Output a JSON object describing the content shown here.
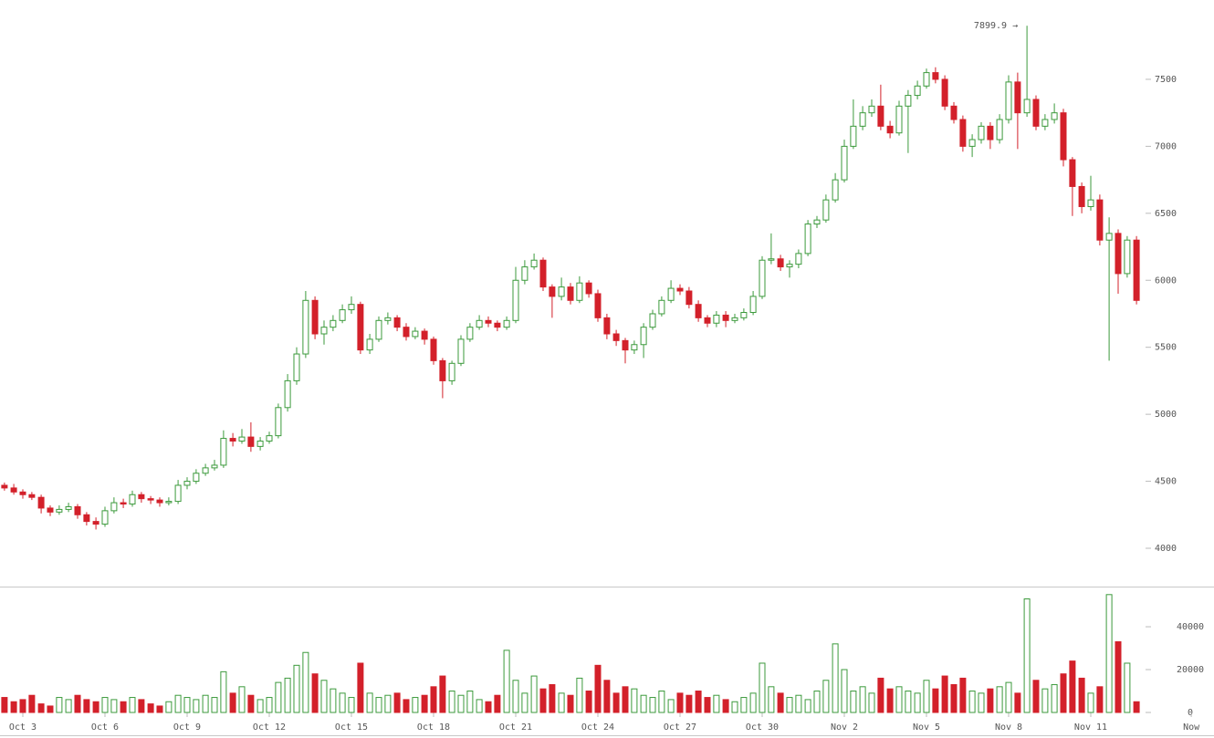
{
  "chart_data": {
    "type": "candlestick",
    "x": [
      -0.67,
      -0.33,
      0,
      0.33,
      0.67,
      1,
      1.33,
      1.67,
      2,
      2.33,
      2.67,
      3,
      3.33,
      3.67,
      4,
      4.33,
      4.67,
      5,
      5.33,
      5.67,
      6,
      6.33,
      6.67,
      7,
      7.33,
      7.67,
      8,
      8.33,
      8.67,
      9,
      9.33,
      9.67,
      10,
      10.33,
      10.67,
      11,
      11.33,
      11.67,
      12,
      12.33,
      12.67,
      13,
      13.33,
      13.67,
      14,
      14.33,
      14.67,
      15,
      15.33,
      15.67,
      16,
      16.33,
      16.67,
      17,
      17.33,
      17.67,
      18,
      18.33,
      18.67,
      19,
      19.33,
      19.67,
      20,
      20.33,
      20.67,
      21,
      21.33,
      21.67,
      22,
      22.33,
      22.67,
      23,
      23.33,
      23.67,
      24,
      24.33,
      24.67,
      25,
      25.33,
      25.67,
      26,
      26.33,
      26.67,
      27,
      27.33,
      27.67,
      28,
      28.33,
      28.67,
      29,
      29.33,
      29.67,
      30,
      30.33,
      30.67,
      31,
      31.33,
      31.67,
      32,
      32.33,
      32.67,
      33,
      33.33,
      33.67,
      34,
      34.33,
      34.67,
      35,
      35.33,
      35.67,
      36,
      36.33,
      36.67,
      37,
      37.33,
      37.67,
      38,
      38.33,
      38.67,
      39,
      39.33,
      39.67,
      40,
      40.33,
      40.67
    ],
    "open": [
      4470,
      4450,
      4420,
      4400,
      4380,
      4300,
      4270,
      4290,
      4310,
      4250,
      4200,
      4180,
      4280,
      4340,
      4330,
      4400,
      4370,
      4360,
      4340,
      4350,
      4470,
      4500,
      4560,
      4600,
      4620,
      4820,
      4800,
      4830,
      4760,
      4800,
      4840,
      5050,
      5250,
      5450,
      5850,
      5600,
      5650,
      5700,
      5780,
      5820,
      5480,
      5560,
      5700,
      5720,
      5650,
      5580,
      5620,
      5560,
      5400,
      5250,
      5380,
      5560,
      5650,
      5700,
      5680,
      5650,
      5700,
      6000,
      6100,
      6150,
      5950,
      5880,
      5950,
      5850,
      5980,
      5900,
      5720,
      5600,
      5550,
      5480,
      5520,
      5650,
      5750,
      5850,
      5940,
      5920,
      5820,
      5720,
      5680,
      5740,
      5700,
      5720,
      5760,
      5880,
      6150,
      6160,
      6100,
      6120,
      6200,
      6420,
      6450,
      6600,
      6750,
      7000,
      7150,
      7250,
      7300,
      7150,
      7100,
      7300,
      7380,
      7450,
      7550,
      7500,
      7300,
      7200,
      7000,
      7050,
      7150,
      7050,
      7200,
      7480,
      7250,
      7350,
      7150,
      7200,
      7250,
      6900,
      6700,
      6550,
      6600,
      6300,
      6350,
      6050,
      6300
    ],
    "high": [
      4490,
      4480,
      4440,
      4420,
      4400,
      4320,
      4320,
      4340,
      4330,
      4270,
      4230,
      4310,
      4380,
      4370,
      4430,
      4420,
      4390,
      4380,
      4380,
      4510,
      4530,
      4590,
      4630,
      4660,
      4880,
      4860,
      4890,
      4940,
      4830,
      4870,
      5080,
      5300,
      5500,
      5920,
      5880,
      5700,
      5740,
      5820,
      5880,
      5840,
      5600,
      5730,
      5760,
      5740,
      5680,
      5650,
      5640,
      5580,
      5420,
      5400,
      5590,
      5680,
      5740,
      5730,
      5700,
      5730,
      6100,
      6150,
      6200,
      6170,
      5970,
      6020,
      5980,
      6030,
      6000,
      5930,
      5750,
      5630,
      5570,
      5550,
      5680,
      5780,
      5880,
      6000,
      5970,
      5950,
      5850,
      5740,
      5770,
      5770,
      5750,
      5790,
      5920,
      6180,
      6350,
      6190,
      6150,
      6230,
      6450,
      6480,
      6640,
      6800,
      7050,
      7350,
      7300,
      7350,
      7460,
      7190,
      7340,
      7420,
      7490,
      7580,
      7590,
      7530,
      7330,
      7230,
      7090,
      7180,
      7180,
      7240,
      7530,
      7550,
      7899.9,
      7380,
      7240,
      7320,
      7280,
      6920,
      6730,
      6780,
      6640,
      6470,
      6380,
      6330,
      6330
    ],
    "low": [
      4430,
      4400,
      4370,
      4360,
      4260,
      4240,
      4250,
      4270,
      4220,
      4170,
      4140,
      4160,
      4260,
      4300,
      4310,
      4340,
      4330,
      4310,
      4320,
      4330,
      4440,
      4480,
      4540,
      4580,
      4600,
      4760,
      4780,
      4720,
      4730,
      4780,
      4820,
      5020,
      5220,
      5420,
      5560,
      5520,
      5620,
      5680,
      5750,
      5450,
      5450,
      5540,
      5670,
      5620,
      5550,
      5560,
      5520,
      5370,
      5120,
      5220,
      5360,
      5540,
      5630,
      5650,
      5620,
      5630,
      5680,
      5970,
      6080,
      5920,
      5720,
      5850,
      5820,
      5830,
      5870,
      5690,
      5560,
      5510,
      5380,
      5450,
      5420,
      5630,
      5730,
      5830,
      5890,
      5790,
      5690,
      5650,
      5650,
      5650,
      5680,
      5700,
      5740,
      5860,
      6120,
      6070,
      6020,
      6090,
      6180,
      6390,
      6430,
      6580,
      6730,
      6980,
      7120,
      7220,
      7120,
      7060,
      7080,
      6950,
      7350,
      7430,
      7470,
      7270,
      7170,
      6960,
      6920,
      7020,
      6980,
      7020,
      7170,
      6980,
      7220,
      7120,
      7120,
      7170,
      6850,
      6480,
      6500,
      6520,
      6260,
      5400,
      5900,
      6020,
      5820
    ],
    "close": [
      4450,
      4420,
      4400,
      4380,
      4300,
      4270,
      4290,
      4310,
      4250,
      4200,
      4180,
      4280,
      4340,
      4330,
      4400,
      4370,
      4360,
      4340,
      4350,
      4470,
      4500,
      4560,
      4600,
      4620,
      4820,
      4800,
      4830,
      4760,
      4800,
      4840,
      5050,
      5250,
      5450,
      5850,
      5600,
      5650,
      5700,
      5780,
      5820,
      5480,
      5560,
      5700,
      5720,
      5650,
      5580,
      5620,
      5560,
      5400,
      5250,
      5380,
      5560,
      5650,
      5700,
      5680,
      5650,
      5700,
      6000,
      6100,
      6150,
      5950,
      5880,
      5950,
      5850,
      5980,
      5900,
      5720,
      5600,
      5550,
      5480,
      5520,
      5650,
      5750,
      5850,
      5940,
      5920,
      5820,
      5720,
      5680,
      5740,
      5700,
      5720,
      5760,
      5880,
      6150,
      6160,
      6100,
      6120,
      6200,
      6420,
      6450,
      6600,
      6750,
      7000,
      7150,
      7250,
      7300,
      7150,
      7100,
      7300,
      7380,
      7450,
      7550,
      7500,
      7300,
      7200,
      7000,
      7050,
      7150,
      7050,
      7200,
      7480,
      7250,
      7350,
      7150,
      7200,
      7250,
      6900,
      6700,
      6550,
      6600,
      6300,
      6350,
      6050,
      6300,
      5850
    ],
    "volume": [
      7000,
      5000,
      6000,
      8000,
      4000,
      3000,
      7000,
      6000,
      8000,
      6000,
      5000,
      7000,
      6000,
      5000,
      7000,
      6000,
      4000,
      3000,
      5000,
      8000,
      7000,
      6000,
      8000,
      7000,
      19000,
      9000,
      12000,
      8000,
      6000,
      7000,
      14000,
      16000,
      22000,
      28000,
      18000,
      15000,
      11000,
      9000,
      7000,
      23000,
      9000,
      7000,
      8000,
      9000,
      6000,
      7000,
      8000,
      12000,
      17000,
      10000,
      8000,
      10000,
      6000,
      5000,
      8000,
      29000,
      15000,
      9000,
      17000,
      11000,
      13000,
      9000,
      8000,
      16000,
      10000,
      22000,
      15000,
      9000,
      12000,
      11000,
      8000,
      7000,
      10000,
      6000,
      9000,
      8000,
      10000,
      7000,
      8000,
      6000,
      5000,
      7000,
      9000,
      23000,
      12000,
      9000,
      7000,
      8000,
      6000,
      10000,
      15000,
      32000,
      20000,
      10000,
      12000,
      9000,
      16000,
      11000,
      12000,
      10000,
      9000,
      15000,
      11000,
      17000,
      13000,
      16000,
      10000,
      9000,
      11000,
      12000,
      14000,
      9000,
      53000,
      15000,
      11000,
      13000,
      18000,
      24000,
      16000,
      9000,
      12000,
      55000,
      33000,
      23000,
      5000
    ],
    "up_color": "#3c9a3c",
    "down_color": "#d3202a",
    "xlim": [
      -0.833,
      43.5
    ],
    "xticks": [
      {
        "value": 0,
        "label": "Oct 3"
      },
      {
        "value": 3,
        "label": "Oct 6"
      },
      {
        "value": 6,
        "label": "Oct 9"
      },
      {
        "value": 9,
        "label": "Oct 12"
      },
      {
        "value": 12,
        "label": "Oct 15"
      },
      {
        "value": 15,
        "label": "Oct 18"
      },
      {
        "value": 18,
        "label": "Oct 21"
      },
      {
        "value": 21,
        "label": "Oct 24"
      },
      {
        "value": 24,
        "label": "Oct 27"
      },
      {
        "value": 27,
        "label": "Oct 30"
      },
      {
        "value": 30,
        "label": "Nov 2"
      },
      {
        "value": 33,
        "label": "Nov 5"
      },
      {
        "value": 36,
        "label": "Nov 8"
      },
      {
        "value": 39,
        "label": "Nov 11"
      },
      {
        "value": 42.67,
        "label": "Now"
      }
    ],
    "ylim": [
      3714,
      8092
    ],
    "yticks": [
      4000,
      4500,
      5000,
      5500,
      6000,
      6500,
      7000,
      7500
    ],
    "volume_ylim": [
      0,
      57900
    ],
    "volume_ticks": [
      0,
      20000,
      40000
    ],
    "annotation": {
      "text": "7899.9 →"
    }
  }
}
